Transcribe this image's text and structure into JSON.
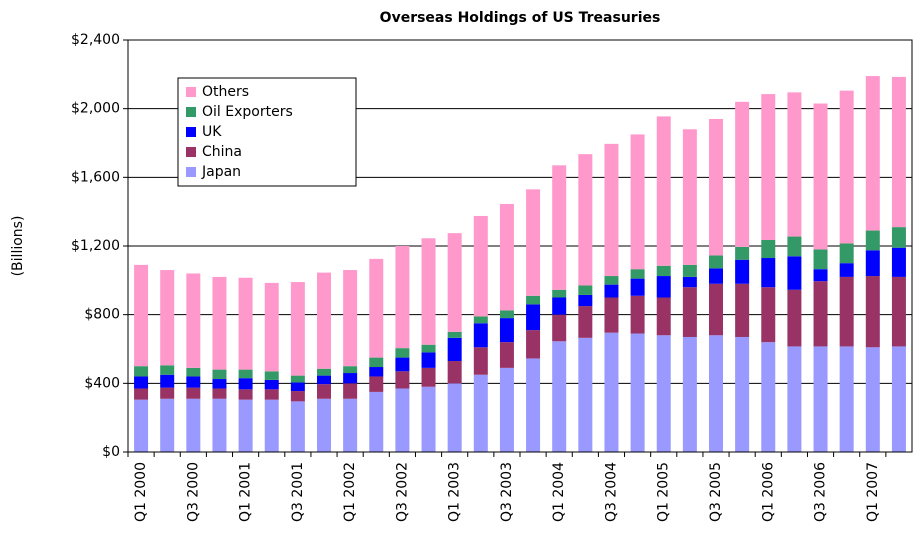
{
  "chart_data": {
    "type": "stacked_bar",
    "title": "Overseas Holdings of US Treasuries",
    "y_label": "(Billions)",
    "categories": [
      "Q1 2000",
      null,
      "Q3 2000",
      null,
      "Q1 2001",
      null,
      "Q3 2001",
      null,
      "Q1 2002",
      null,
      "Q3 2002",
      null,
      "Q1 2003",
      null,
      "Q3 2003",
      null,
      "Q1 2004",
      null,
      "Q3 2004",
      null,
      "Q1 2005",
      null,
      "Q3 2005",
      null,
      "Q1 2006",
      null,
      "Q3 2006",
      null,
      "Q1 2007",
      null
    ],
    "series": [
      {
        "name": "Japan",
        "color": "#9999ff",
        "values": [
          305,
          310,
          310,
          310,
          305,
          305,
          295,
          310,
          310,
          350,
          370,
          380,
          400,
          450,
          490,
          545,
          645,
          665,
          695,
          690,
          680,
          670,
          680,
          670,
          640,
          615,
          615,
          615,
          610,
          615
        ]
      },
      {
        "name": "China",
        "color": "#993366",
        "values": [
          65,
          65,
          65,
          60,
          60,
          60,
          60,
          85,
          90,
          90,
          100,
          110,
          130,
          160,
          150,
          165,
          155,
          185,
          205,
          220,
          220,
          290,
          300,
          310,
          320,
          330,
          380,
          405,
          415,
          405
        ]
      },
      {
        "name": "UK",
        "color": "#0000ff",
        "values": [
          70,
          75,
          65,
          55,
          65,
          55,
          50,
          50,
          60,
          55,
          80,
          90,
          135,
          140,
          140,
          150,
          100,
          65,
          75,
          100,
          125,
          60,
          90,
          140,
          170,
          195,
          70,
          80,
          150,
          170
        ]
      },
      {
        "name": "Oil Exporters",
        "color": "#339966",
        "values": [
          60,
          55,
          50,
          55,
          50,
          50,
          40,
          40,
          40,
          55,
          55,
          45,
          35,
          40,
          45,
          50,
          45,
          55,
          50,
          55,
          60,
          70,
          75,
          75,
          105,
          115,
          115,
          115,
          115,
          120
        ]
      },
      {
        "name": "Others",
        "color": "#ff99cc",
        "values": [
          590,
          555,
          550,
          540,
          535,
          515,
          545,
          560,
          560,
          575,
          595,
          620,
          575,
          585,
          620,
          620,
          725,
          765,
          770,
          785,
          870,
          790,
          795,
          845,
          850,
          840,
          850,
          890,
          900,
          875
        ]
      }
    ],
    "ylim": [
      0,
      2400
    ],
    "yticks": [
      {
        "value": 0,
        "label": "$0"
      },
      {
        "value": 400,
        "label": "$400"
      },
      {
        "value": 800,
        "label": "$800"
      },
      {
        "value": 1200,
        "label": "$1,200"
      },
      {
        "value": 1600,
        "label": "$1,600"
      },
      {
        "value": 2000,
        "label": "$2,000"
      },
      {
        "value": 2400,
        "label": "$2,400"
      }
    ],
    "grid": true,
    "legend": "upper left"
  }
}
